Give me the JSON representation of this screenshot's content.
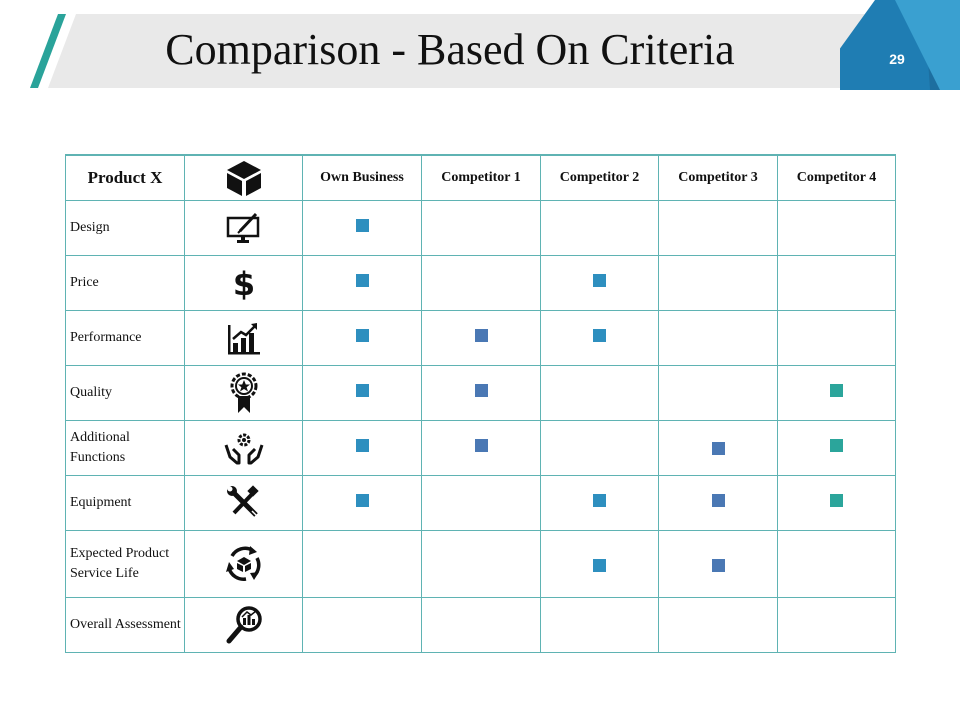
{
  "slide": {
    "title": "Comparison - Based On Criteria",
    "page_number": "29"
  },
  "table": {
    "headers": [
      "Product X",
      "",
      "Own Business",
      "Competitor 1",
      "Competitor 2",
      "Competitor 3",
      "Competitor 4"
    ],
    "header_icon": "cube-icon",
    "rows": [
      {
        "label": "Design",
        "icon": "monitor-pen-icon",
        "marks": [
          true,
          false,
          false,
          false,
          false
        ]
      },
      {
        "label": "Price",
        "icon": "dollar-icon",
        "marks": [
          true,
          false,
          true,
          false,
          false
        ]
      },
      {
        "label": "Performance",
        "icon": "growth-chart-icon",
        "marks": [
          true,
          true,
          true,
          false,
          false
        ]
      },
      {
        "label": "Quality",
        "icon": "award-ribbon-icon",
        "marks": [
          true,
          true,
          false,
          false,
          true
        ]
      },
      {
        "label": "Additional Functions",
        "icon": "hands-gear-icon",
        "marks": [
          true,
          true,
          false,
          true,
          true
        ]
      },
      {
        "label": "Equipment",
        "icon": "wrench-screwdriver-icon",
        "marks": [
          true,
          false,
          true,
          true,
          true
        ]
      },
      {
        "label": "Expected Product Service Life",
        "icon": "cycle-cube-icon",
        "marks": [
          false,
          false,
          true,
          true,
          false
        ]
      },
      {
        "label": "Overall Assessment",
        "icon": "magnifier-chart-icon",
        "marks": [
          false,
          false,
          false,
          false,
          false
        ]
      }
    ],
    "mark_colors": {
      "own_business": "#2e8fbf",
      "competitor_1": "#4a78b4",
      "competitor_2": "#2e8fbf",
      "competitor_3": "#4a78b4",
      "competitor_4": "#2ba59b"
    }
  },
  "colors": {
    "accent_teal": "#2aa39a",
    "accent_blue": "#1f7db3",
    "grid_line": "#5fb3b3",
    "title_band": "#e8e8e8"
  }
}
